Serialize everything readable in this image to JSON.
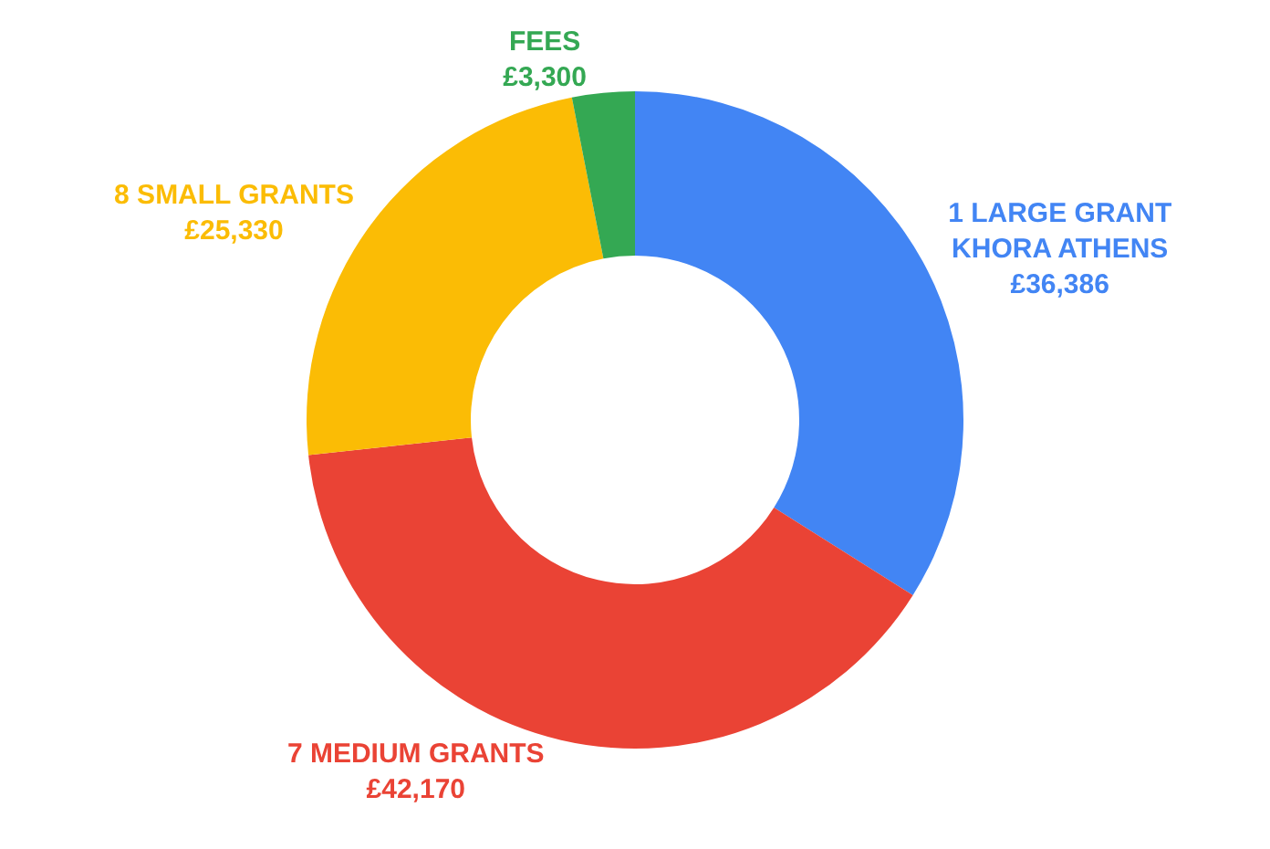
{
  "chart_data": {
    "type": "donut",
    "categories": [
      "1 LARGE GRANT\nKHORA ATHENS",
      "7 MEDIUM GRANTS",
      "8 SMALL GRANTS",
      "FEES"
    ],
    "values": [
      36386,
      42170,
      25330,
      3300
    ],
    "value_labels": [
      "£36,386",
      "£42,170",
      "£25,330",
      "£3,300"
    ],
    "colors": [
      "#4285f4",
      "#ea4335",
      "#fbbc05",
      "#34a853"
    ],
    "legend": false
  }
}
